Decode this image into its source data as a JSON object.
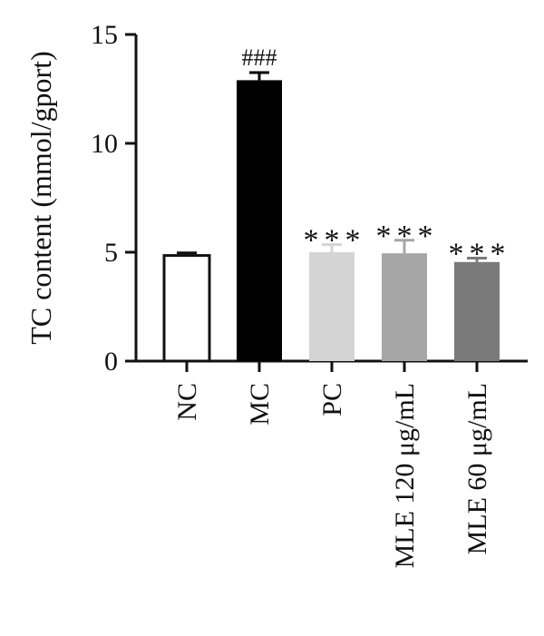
{
  "chart_data": {
    "type": "bar",
    "ylabel": "TC content (mmol/gport)",
    "xlabel": "",
    "title": "",
    "ylim": [
      0,
      15
    ],
    "yticks": [
      0,
      5,
      10,
      15
    ],
    "yticks_labels": [
      "0",
      "5",
      "10",
      "15"
    ],
    "categories": [
      "NC",
      "MC",
      "PC",
      "MLE 120 μg/mL",
      "MLE 60 μg/mL"
    ],
    "values": [
      4.85,
      12.9,
      5.0,
      4.95,
      4.55
    ],
    "errors": [
      0.12,
      0.35,
      0.35,
      0.6,
      0.18
    ],
    "colors": [
      "#ffffff",
      "#000000",
      "#d4d4d4",
      "#a6a6a6",
      "#7a7a7a"
    ],
    "annotations": [
      "",
      "###",
      "***",
      "***",
      "***"
    ]
  }
}
